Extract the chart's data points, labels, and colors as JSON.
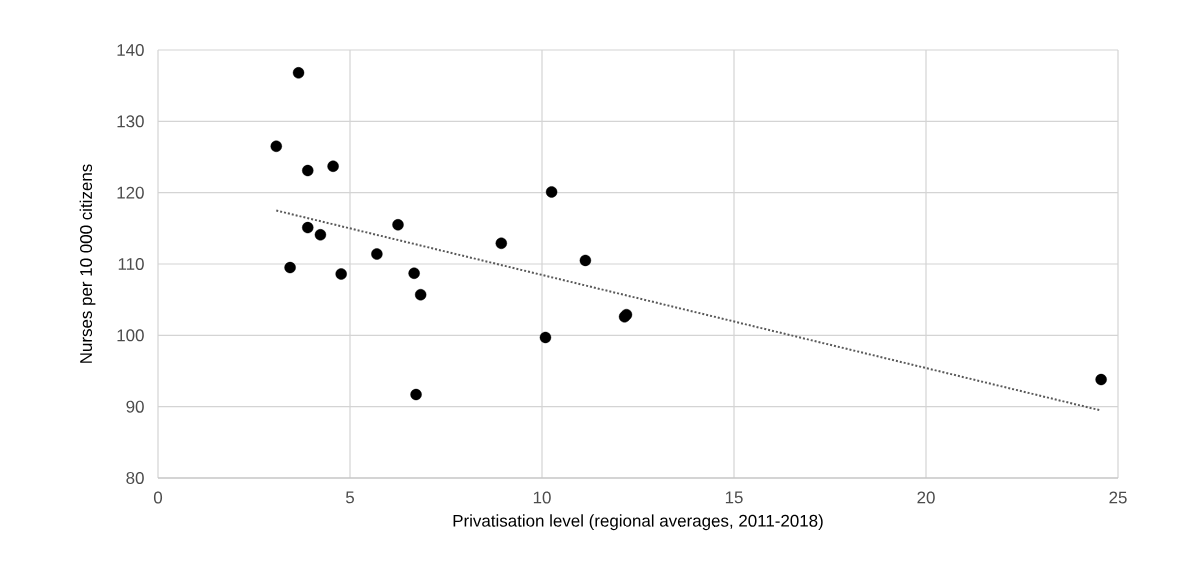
{
  "chart_data": {
    "type": "scatter",
    "xlabel": "Privatisation level (regional averages, 2011-2018)",
    "ylabel": "Nurses per 10 000 citizens",
    "xlim": [
      0,
      25
    ],
    "xticks": [
      0,
      5,
      10,
      15,
      20,
      25
    ],
    "ylim": [
      80,
      140
    ],
    "yticks": [
      80,
      90,
      100,
      110,
      120,
      130,
      140
    ],
    "grid": true,
    "series": [
      {
        "color": "#000000",
        "marker": "circle",
        "x": [
          3.66,
          3.08,
          3.9,
          4.56,
          3.9,
          4.23,
          6.25,
          5.7,
          8.94,
          3.44,
          4.77,
          6.67,
          6.84,
          6.72,
          10.09,
          10.25,
          11.13,
          12.15,
          12.2,
          24.56
        ],
        "values": [
          136.8,
          126.5,
          123.1,
          123.7,
          115.1,
          114.1,
          115.5,
          111.4,
          112.9,
          109.5,
          108.6,
          108.7,
          105.7,
          91.7,
          99.7,
          120.1,
          110.5,
          102.6,
          102.9,
          93.8
        ]
      },
      {
        "type": "line",
        "color": "#595959",
        "line_style": "dotted",
        "marker": "none",
        "x": [
          3.08,
          24.53
        ],
        "values": [
          117.5,
          89.5
        ]
      }
    ]
  }
}
